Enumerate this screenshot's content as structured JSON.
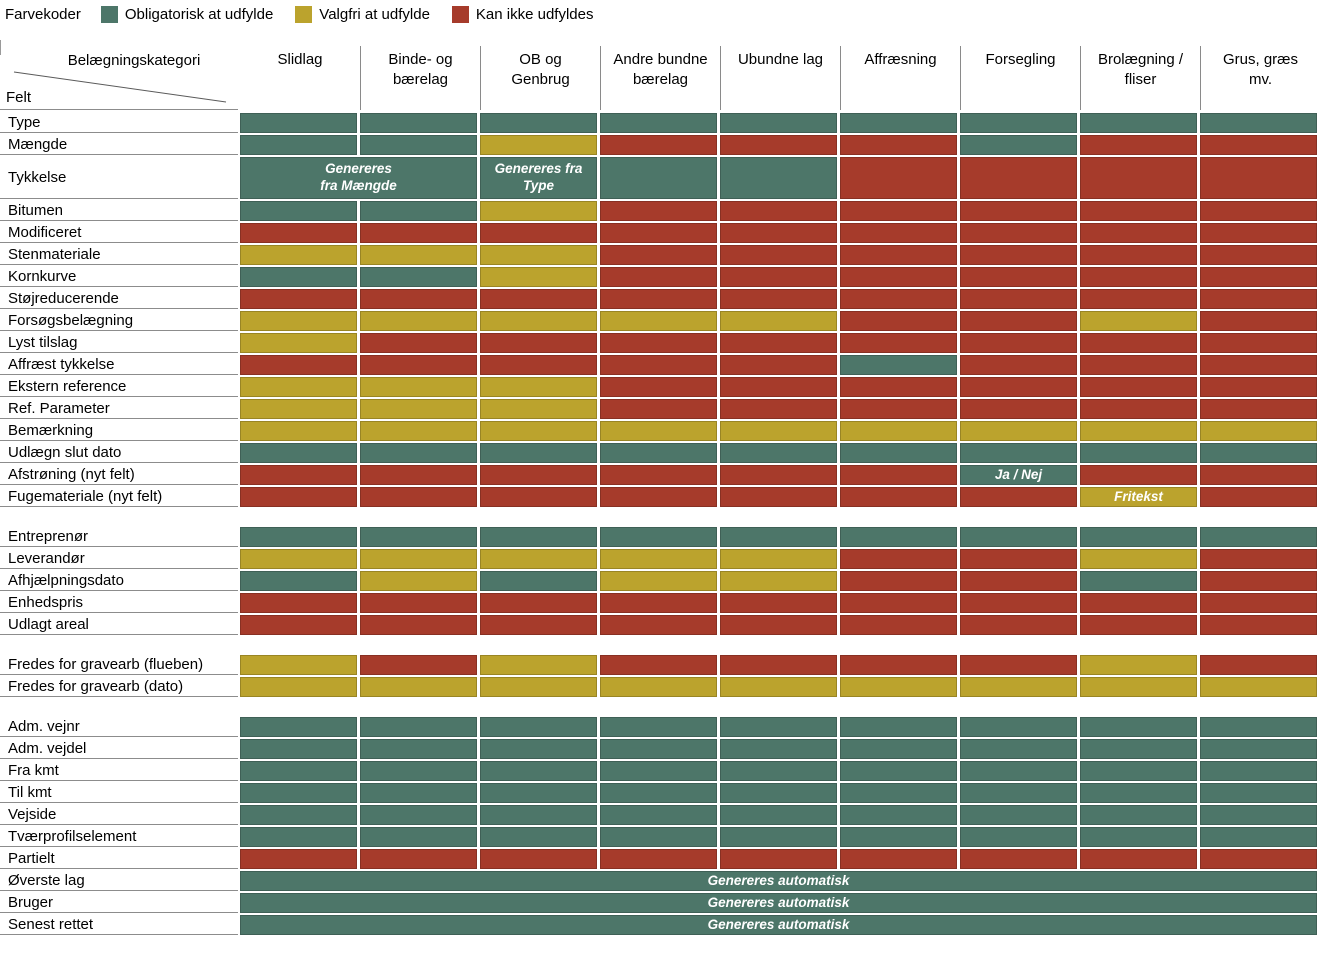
{
  "legend": {
    "title": "Farvekoder",
    "items": [
      {
        "key": "mandatory",
        "label": "Obligatorisk at udfylde",
        "color": "#4d7669"
      },
      {
        "key": "optional",
        "label": "Valgfri at udfylde",
        "color": "#bba32d"
      },
      {
        "key": "blocked",
        "label": "Kan ikke udfyldes",
        "color": "#a63b2b"
      }
    ]
  },
  "color_codes": {
    "G": "#4d7669",
    "Y": "#bba32d",
    "R": "#a63b2b"
  },
  "matrix_header": {
    "corner_top_label": "Belægningskategori",
    "corner_bottom_label": "Felt",
    "columns": [
      "Slidlag",
      "Binde- og\nbærelag",
      "OB og\nGenbrug",
      "Andre bundne\nbærelag",
      "Ubundne lag",
      "Affræsning",
      "Forsegling",
      "Brolægning /\nfliser",
      "Grus, græs\nmv."
    ]
  },
  "chart_data": {
    "type": "heatmap",
    "title": "Farvekoder",
    "legend_entries": [
      "Obligatorisk at udfylde",
      "Valgfri at udfylde",
      "Kan ikke udfyldes"
    ],
    "x_categories": [
      "Slidlag",
      "Binde- og bærelag",
      "OB og Genbrug",
      "Andre bundne bærelag",
      "Ubundne lag",
      "Affræsning",
      "Forsegling",
      "Brolægning / fliser",
      "Grus, græs mv."
    ],
    "value_meaning": {
      "G": "Obligatorisk at udfylde",
      "Y": "Valgfri at udfylde",
      "R": "Kan ikke udfyldes"
    }
  },
  "sections": [
    {
      "rows": [
        {
          "label": "Type",
          "cells": [
            "G",
            "G",
            "G",
            "G",
            "G",
            "G",
            "G",
            "G",
            "G"
          ]
        },
        {
          "label": "Mængde",
          "cells": [
            "G",
            "G",
            "Y",
            "R",
            "R",
            "R",
            "G",
            "R",
            "R"
          ]
        },
        {
          "label": "Tykkelse",
          "tall": true,
          "cells": [
            {
              "c": "G",
              "span": 2,
              "t": "Genereres\nfra Mængde"
            },
            {
              "c": "G",
              "t": "Genereres fra\nType"
            },
            "G",
            "G",
            "R",
            "R",
            "R",
            "R"
          ]
        },
        {
          "label": "Bitumen",
          "cells": [
            "G",
            "G",
            "Y",
            "R",
            "R",
            "R",
            "R",
            "R",
            "R"
          ]
        },
        {
          "label": "Modificeret",
          "cells": [
            "R",
            "R",
            "R",
            "R",
            "R",
            "R",
            "R",
            "R",
            "R"
          ]
        },
        {
          "label": "Stenmateriale",
          "cells": [
            "Y",
            "Y",
            "Y",
            "R",
            "R",
            "R",
            "R",
            "R",
            "R"
          ]
        },
        {
          "label": "Kornkurve",
          "cells": [
            "G",
            "G",
            "Y",
            "R",
            "R",
            "R",
            "R",
            "R",
            "R"
          ]
        },
        {
          "label": "Støjreducerende",
          "cells": [
            "R",
            "R",
            "R",
            "R",
            "R",
            "R",
            "R",
            "R",
            "R"
          ]
        },
        {
          "label": "Forsøgsbelægning",
          "cells": [
            "Y",
            "Y",
            "Y",
            "Y",
            "Y",
            "R",
            "R",
            "Y",
            "R"
          ]
        },
        {
          "label": "Lyst tilslag",
          "cells": [
            "Y",
            "R",
            "R",
            "R",
            "R",
            "R",
            "R",
            "R",
            "R"
          ]
        },
        {
          "label": "Affræst tykkelse",
          "cells": [
            "R",
            "R",
            "R",
            "R",
            "R",
            "G",
            "R",
            "R",
            "R"
          ]
        },
        {
          "label": "Ekstern reference",
          "cells": [
            "Y",
            "Y",
            "Y",
            "R",
            "R",
            "R",
            "R",
            "R",
            "R"
          ]
        },
        {
          "label": "Ref. Parameter",
          "cells": [
            "Y",
            "Y",
            "Y",
            "R",
            "R",
            "R",
            "R",
            "R",
            "R"
          ]
        },
        {
          "label": "Bemærkning",
          "cells": [
            "Y",
            "Y",
            "Y",
            "Y",
            "Y",
            "Y",
            "Y",
            "Y",
            "Y"
          ]
        },
        {
          "label": "Udlægn slut dato",
          "cells": [
            "G",
            "G",
            "G",
            "G",
            "G",
            "G",
            "G",
            "G",
            "G"
          ]
        },
        {
          "label": "Afstrøning (nyt felt)",
          "cells": [
            "R",
            "R",
            "R",
            "R",
            "R",
            "R",
            {
              "c": "G",
              "t": "Ja / Nej"
            },
            "R",
            "R"
          ]
        },
        {
          "label": "Fugemateriale (nyt felt)",
          "cells": [
            "R",
            "R",
            "R",
            "R",
            "R",
            "R",
            "R",
            {
              "c": "Y",
              "t": "Fritekst"
            },
            "R"
          ]
        }
      ]
    },
    {
      "rows": [
        {
          "label": "Entreprenør",
          "cells": [
            "G",
            "G",
            "G",
            "G",
            "G",
            "G",
            "G",
            "G",
            "G"
          ]
        },
        {
          "label": "Leverandør",
          "cells": [
            "Y",
            "Y",
            "Y",
            "Y",
            "Y",
            "R",
            "R",
            "Y",
            "R"
          ]
        },
        {
          "label": "Afhjælpningsdato",
          "cells": [
            "G",
            "Y",
            "G",
            "Y",
            "Y",
            "R",
            "R",
            "G",
            "R"
          ]
        },
        {
          "label": "Enhedspris",
          "cells": [
            "R",
            "R",
            "R",
            "R",
            "R",
            "R",
            "R",
            "R",
            "R"
          ]
        },
        {
          "label": "Udlagt areal",
          "cells": [
            "R",
            "R",
            "R",
            "R",
            "R",
            "R",
            "R",
            "R",
            "R"
          ]
        }
      ]
    },
    {
      "rows": [
        {
          "label": "Fredes for gravearb (flueben)",
          "cells": [
            "Y",
            "R",
            "Y",
            "R",
            "R",
            "R",
            "R",
            "Y",
            "R"
          ]
        },
        {
          "label": "Fredes for gravearb (dato)",
          "cells": [
            "Y",
            "Y",
            "Y",
            "Y",
            "Y",
            "Y",
            "Y",
            "Y",
            "Y"
          ]
        }
      ]
    },
    {
      "rows": [
        {
          "label": "Adm. vejnr",
          "cells": [
            "G",
            "G",
            "G",
            "G",
            "G",
            "G",
            "G",
            "G",
            "G"
          ]
        },
        {
          "label": "Adm. vejdel",
          "cells": [
            "G",
            "G",
            "G",
            "G",
            "G",
            "G",
            "G",
            "G",
            "G"
          ]
        },
        {
          "label": "Fra kmt",
          "cells": [
            "G",
            "G",
            "G",
            "G",
            "G",
            "G",
            "G",
            "G",
            "G"
          ]
        },
        {
          "label": "Til kmt",
          "cells": [
            "G",
            "G",
            "G",
            "G",
            "G",
            "G",
            "G",
            "G",
            "G"
          ]
        },
        {
          "label": "Vejside",
          "cells": [
            "G",
            "G",
            "G",
            "G",
            "G",
            "G",
            "G",
            "G",
            "G"
          ]
        },
        {
          "label": "Tværprofilselement",
          "cells": [
            "G",
            "G",
            "G",
            "G",
            "G",
            "G",
            "G",
            "G",
            "G"
          ]
        },
        {
          "label": "Partielt",
          "cells": [
            "R",
            "R",
            "R",
            "R",
            "R",
            "R",
            "R",
            "R",
            "R"
          ]
        },
        {
          "label": "Øverste lag",
          "cells": [
            {
              "c": "G",
              "span": 9,
              "t": "Genereres automatisk"
            }
          ]
        },
        {
          "label": "Bruger",
          "cells": [
            {
              "c": "G",
              "span": 9,
              "t": "Genereres automatisk"
            }
          ]
        },
        {
          "label": "Senest rettet",
          "cells": [
            {
              "c": "G",
              "span": 9,
              "t": "Genereres automatisk"
            }
          ]
        }
      ]
    }
  ]
}
